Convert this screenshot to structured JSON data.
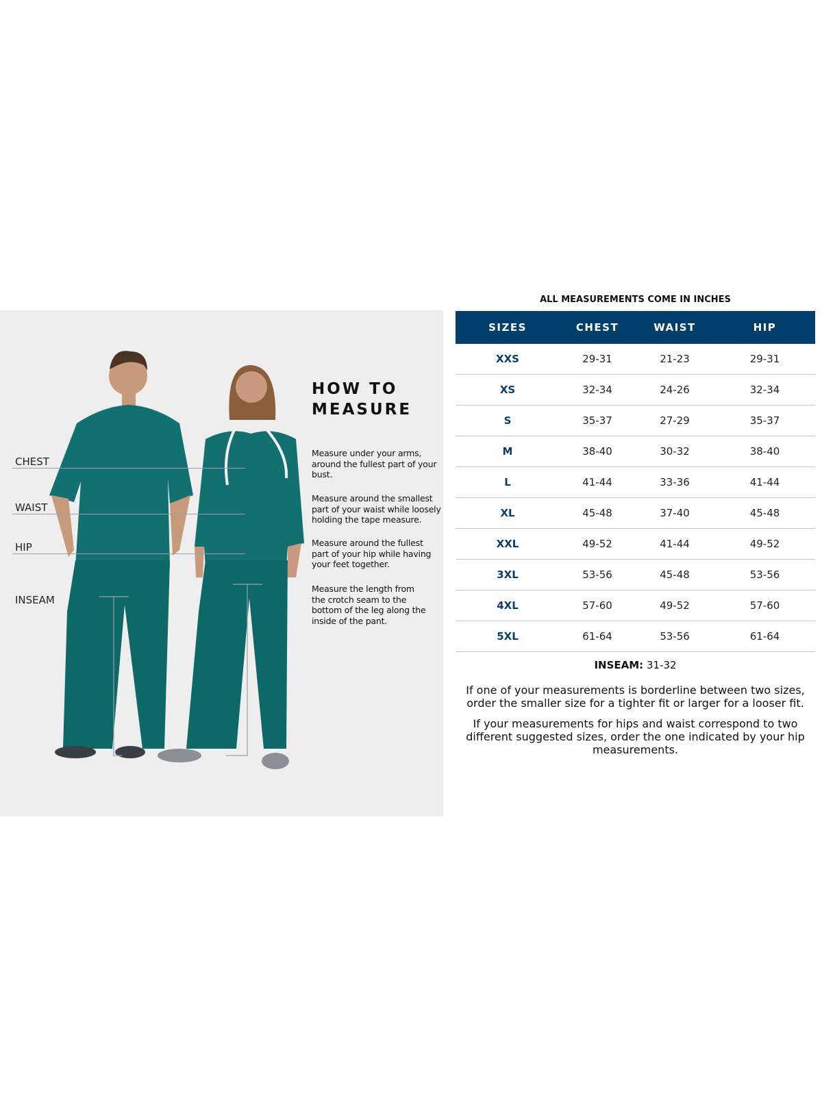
{
  "guide": {
    "heading_line1": "HOW TO",
    "heading_line2": "MEASURE",
    "labels": {
      "chest": "CHEST",
      "waist": "WAIST",
      "hip": "HIP",
      "inseam": "INSEAM"
    },
    "descriptions": {
      "chest": "Measure under your arms, around the fullest part of your bust.",
      "waist": "Measure around the smallest part of your waist while loosely holding the tape measure.",
      "hip": "Measure around the fullest part of your hip while having your feet together.",
      "inseam": "Measure the length from the crotch seam to the bottom of the leg along the inside of the pant."
    },
    "scrub_color": "#0f6e6e"
  },
  "chart": {
    "title": "ALL MEASUREMENTS COME IN INCHES",
    "header_color": "#033f6d",
    "columns": [
      "SIZES",
      "CHEST",
      "WAIST",
      "HIP"
    ],
    "rows": [
      [
        "XXS",
        "29-31",
        "21-23",
        "29-31"
      ],
      [
        "XS",
        "32-34",
        "24-26",
        "32-34"
      ],
      [
        "S",
        "35-37",
        "27-29",
        "35-37"
      ],
      [
        "M",
        "38-40",
        "30-32",
        "38-40"
      ],
      [
        "L",
        "41-44",
        "33-36",
        "41-44"
      ],
      [
        "XL",
        "45-48",
        "37-40",
        "45-48"
      ],
      [
        "XXL",
        "49-52",
        "41-44",
        "49-52"
      ],
      [
        "3XL",
        "53-56",
        "45-48",
        "53-56"
      ],
      [
        "4XL",
        "57-60",
        "49-52",
        "57-60"
      ],
      [
        "5XL",
        "61-64",
        "53-56",
        "61-64"
      ]
    ],
    "inseam_label": "INSEAM:",
    "inseam_value": " 31-32",
    "note1": "If one of your measurements is borderline between two sizes, order the smaller size for a tighter fit or larger for a looser fit.",
    "note2": "If your measurements for hips and waist correspond to two different suggested sizes, order the one indicated by your hip measurements."
  }
}
